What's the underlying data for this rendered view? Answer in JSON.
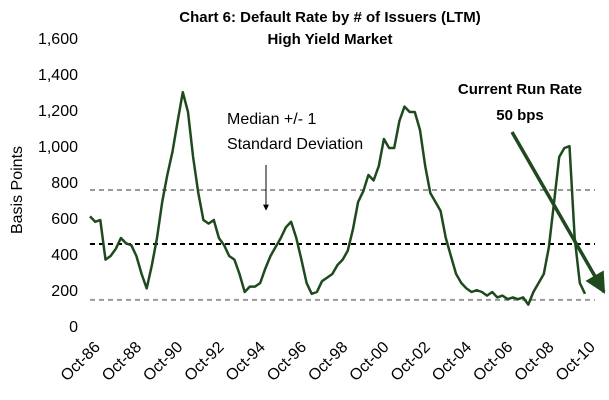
{
  "chart_data": {
    "type": "line",
    "title": "Chart 6: Default Rate by # of Issuers (LTM)",
    "subtitle": "High Yield Market",
    "ylabel": "Basis Points",
    "x": [
      "Oct-86",
      "Jan-87",
      "Apr-87",
      "Jul-87",
      "Oct-87",
      "Jan-88",
      "Apr-88",
      "Jul-88",
      "Oct-88",
      "Jan-89",
      "Apr-89",
      "Jul-89",
      "Oct-89",
      "Jan-90",
      "Apr-90",
      "Jul-90",
      "Oct-90",
      "Jan-91",
      "Apr-91",
      "Jul-91",
      "Oct-91",
      "Jan-92",
      "Apr-92",
      "Jul-92",
      "Oct-92",
      "Jan-93",
      "Apr-93",
      "Jul-93",
      "Oct-93",
      "Jan-94",
      "Apr-94",
      "Jul-94",
      "Oct-94",
      "Jan-95",
      "Apr-95",
      "Jul-95",
      "Oct-95",
      "Jan-96",
      "Apr-96",
      "Jul-96",
      "Oct-96",
      "Jan-97",
      "Apr-97",
      "Jul-97",
      "Oct-97",
      "Jan-98",
      "Apr-98",
      "Jul-98",
      "Oct-98",
      "Jan-99",
      "Apr-99",
      "Jul-99",
      "Oct-99",
      "Jan-00",
      "Apr-00",
      "Jul-00",
      "Oct-00",
      "Jan-01",
      "Apr-01",
      "Jul-01",
      "Oct-01",
      "Jan-02",
      "Apr-02",
      "Jul-02",
      "Oct-02",
      "Jan-03",
      "Apr-03",
      "Jul-03",
      "Oct-03",
      "Jan-04",
      "Apr-04",
      "Jul-04",
      "Oct-04",
      "Jan-05",
      "Apr-05",
      "Jul-05",
      "Oct-05",
      "Jan-06",
      "Apr-06",
      "Jul-06",
      "Oct-06",
      "Jan-07",
      "Apr-07",
      "Jul-07",
      "Oct-07",
      "Jan-08",
      "Apr-08",
      "Jul-08",
      "Oct-08",
      "Jan-09",
      "Apr-09",
      "Jul-09",
      "Oct-09",
      "Jan-10",
      "Apr-10",
      "Jul-10",
      "Oct-10"
    ],
    "series": [
      {
        "name": "Default Rate",
        "color": "#1f4a1f",
        "values": [
          620,
          590,
          600,
          380,
          400,
          440,
          500,
          470,
          460,
          400,
          300,
          220,
          350,
          500,
          700,
          850,
          980,
          1150,
          1310,
          1200,
          950,
          750,
          600,
          580,
          600,
          500,
          460,
          400,
          380,
          300,
          200,
          230,
          230,
          250,
          330,
          400,
          450,
          500,
          560,
          590,
          500,
          380,
          250,
          190,
          200,
          260,
          280,
          300,
          350,
          380,
          430,
          550,
          700,
          760,
          850,
          820,
          900,
          1050,
          1000,
          1000,
          1150,
          1230,
          1200,
          1200,
          1100,
          900,
          750,
          700,
          650,
          500,
          400,
          300,
          250,
          220,
          200,
          210,
          200,
          180,
          200,
          170,
          180,
          160,
          170,
          160,
          170,
          130,
          200,
          250,
          300,
          450,
          700,
          950,
          1000,
          1010,
          500,
          250,
          190
        ]
      }
    ],
    "xticks": [
      "Oct-86",
      "Oct-88",
      "Oct-90",
      "Oct-92",
      "Oct-94",
      "Oct-96",
      "Oct-98",
      "Oct-00",
      "Oct-02",
      "Oct-04",
      "Oct-06",
      "Oct-08",
      "Oct-10"
    ],
    "ylim": [
      0,
      1600
    ],
    "yticks": [
      0,
      200,
      400,
      600,
      800,
      {
        "value": 1000,
        "label": "1,000"
      },
      {
        "value": 1200,
        "label": "1,200"
      },
      {
        "value": 1400,
        "label": "1,400"
      },
      {
        "value": 1600,
        "label": "1,600"
      }
    ],
    "reference_lines": [
      {
        "value": 767,
        "color": "#999999"
      },
      {
        "value": 467,
        "color": "#000000"
      },
      {
        "value": 156,
        "color": "#999999"
      }
    ],
    "annotations": [
      {
        "lines": [
          "Median +/- 1",
          "Standard Deviation"
        ]
      },
      {
        "lines": [
          "Current Run Rate",
          "50 bps"
        ]
      }
    ]
  }
}
